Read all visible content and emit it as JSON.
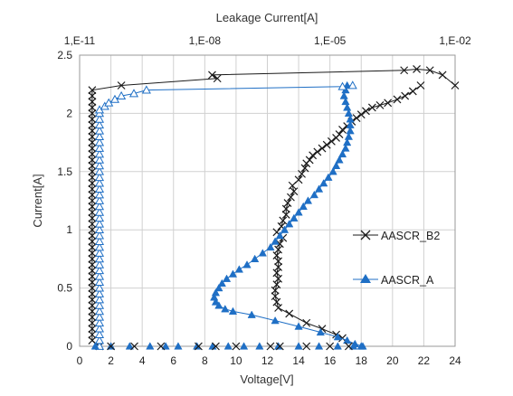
{
  "chart_data": {
    "type": "scatter",
    "title": "",
    "xlabel": "Voltage[V]",
    "x2label": "Leakage Current[A]",
    "ylabel": "Current[A]",
    "xlim": [
      0,
      24
    ],
    "ylim": [
      0,
      2.5
    ],
    "x_ticks": [
      "0",
      "2",
      "4",
      "6",
      "8",
      "10",
      "12",
      "14",
      "16",
      "18",
      "20",
      "22",
      "24"
    ],
    "y_ticks": [
      "0",
      "0.5",
      "1",
      "1.5",
      "2",
      "2.5"
    ],
    "x2_ticks": [
      "1,E-11",
      "1,E-08",
      "1,E-05",
      "1,E-02"
    ],
    "x2_scale": "log",
    "x2lim": [
      1e-11,
      0.01
    ],
    "grid": true,
    "legend_position": "right",
    "series": [
      {
        "name": "AASCR_B2",
        "color": "#1a1a1a",
        "marker": "x",
        "tlp": {
          "voltage": [
            16.8,
            16.4,
            15.5,
            14.5,
            13.4,
            12.7,
            12.6,
            12.5,
            12.5,
            12.6,
            12.7,
            12.6,
            12.7,
            12.7,
            12.6,
            12.7,
            12.8,
            13.0,
            12.6,
            12.9,
            13.0,
            13.2,
            13.2,
            13.3,
            13.5,
            13.7,
            13.6,
            14.0,
            14.2,
            14.4,
            14.5,
            14.7,
            14.9,
            15.2,
            15.5,
            15.8,
            16.1,
            16.4,
            16.6,
            16.8,
            17.1,
            17.4,
            17.7,
            18.0,
            18.3,
            18.7,
            19.2,
            19.7,
            20.3,
            20.8,
            21.3,
            21.8
          ],
          "current": [
            0.07,
            0.1,
            0.15,
            0.2,
            0.28,
            0.33,
            0.38,
            0.43,
            0.48,
            0.53,
            0.58,
            0.63,
            0.68,
            0.73,
            0.78,
            0.83,
            0.88,
            0.93,
            0.98,
            1.03,
            1.08,
            1.13,
            1.18,
            1.23,
            1.28,
            1.33,
            1.38,
            1.43,
            1.48,
            1.53,
            1.57,
            1.6,
            1.64,
            1.67,
            1.7,
            1.73,
            1.76,
            1.79,
            1.82,
            1.86,
            1.89,
            1.93,
            1.96,
            1.99,
            2.02,
            2.05,
            2.07,
            2.09,
            2.12,
            2.15,
            2.19,
            2.24
          ]
        },
        "leakage": {
          "current": [
            0,
            0.05,
            0.1,
            0.15,
            0.2,
            0.25,
            0.3,
            0.35,
            0.4,
            0.45,
            0.5,
            0.55,
            0.6,
            0.65,
            0.7,
            0.75,
            0.8,
            0.85,
            0.9,
            0.95,
            1.0,
            1.05,
            1.1,
            1.15,
            1.2,
            1.25,
            1.3,
            1.35,
            1.4,
            1.45,
            1.5,
            1.55,
            1.6,
            1.65,
            1.7,
            1.75,
            1.8,
            1.85,
            1.9,
            1.95,
            2.0,
            2.05,
            2.1,
            2.15,
            2.2,
            2.24,
            2.3,
            2.33,
            2.37,
            2.38,
            2.37,
            2.33,
            2.24
          ],
          "leakage_a": [
            3e-11,
            2e-11,
            2e-11,
            2e-11,
            2e-11,
            2e-11,
            2e-11,
            2e-11,
            2e-11,
            2e-11,
            2e-11,
            2e-11,
            2e-11,
            2e-11,
            2e-11,
            2e-11,
            2e-11,
            2e-11,
            2e-11,
            2e-11,
            2e-11,
            2e-11,
            2e-11,
            2e-11,
            2e-11,
            2e-11,
            2e-11,
            2e-11,
            2e-11,
            2e-11,
            2e-11,
            2e-11,
            2e-11,
            2e-11,
            2e-11,
            2e-11,
            2e-11,
            2e-11,
            2e-11,
            2e-11,
            2e-11,
            2e-11,
            2e-11,
            2e-11,
            2e-11,
            1e-10,
            2e-08,
            1.5e-08,
            0.0006,
            0.0012,
            0.0025,
            0.005,
            0.01
          ]
        }
      },
      {
        "name": "AASCR_A",
        "color": "#1f6fc5",
        "marker": "triangle",
        "tlp": {
          "voltage": [
            18.1,
            17.6,
            17.1,
            16.5,
            15.4,
            14.0,
            12.5,
            11.0,
            9.8,
            9.3,
            8.9,
            8.7,
            8.6,
            8.7,
            8.9,
            9.1,
            9.4,
            9.8,
            10.2,
            10.7,
            11.2,
            11.7,
            12.2,
            12.5,
            12.8,
            13.1,
            13.4,
            13.7,
            14.0,
            14.3,
            14.6,
            15.0,
            15.3,
            15.6,
            15.9,
            16.2,
            16.4,
            16.6,
            16.8,
            17.0,
            17.1,
            17.2,
            17.3,
            17.3,
            17.3,
            17.2,
            17.1,
            17.0,
            16.9,
            17.0,
            17.1
          ],
          "current": [
            0.0,
            0.02,
            0.05,
            0.08,
            0.12,
            0.17,
            0.22,
            0.27,
            0.3,
            0.32,
            0.35,
            0.38,
            0.42,
            0.46,
            0.5,
            0.54,
            0.58,
            0.62,
            0.66,
            0.7,
            0.75,
            0.8,
            0.85,
            0.9,
            0.95,
            1.0,
            1.05,
            1.1,
            1.15,
            1.2,
            1.25,
            1.3,
            1.35,
            1.4,
            1.45,
            1.5,
            1.55,
            1.6,
            1.65,
            1.7,
            1.75,
            1.8,
            1.85,
            1.9,
            1.95,
            2.0,
            2.05,
            2.1,
            2.15,
            2.2,
            2.24
          ]
        },
        "leakage": {
          "current": [
            0,
            0.05,
            0.1,
            0.15,
            0.2,
            0.25,
            0.3,
            0.35,
            0.4,
            0.45,
            0.5,
            0.55,
            0.6,
            0.65,
            0.7,
            0.75,
            0.8,
            0.85,
            0.9,
            0.95,
            1.0,
            1.05,
            1.1,
            1.15,
            1.2,
            1.25,
            1.3,
            1.35,
            1.4,
            1.45,
            1.5,
            1.55,
            1.6,
            1.65,
            1.7,
            1.75,
            1.8,
            1.85,
            1.9,
            1.95,
            2.0,
            2.03,
            2.06,
            2.09,
            2.12,
            2.15,
            2.17,
            2.2,
            2.23,
            2.24
          ],
          "leakage_a": [
            3e-11,
            3e-11,
            3e-11,
            3e-11,
            3e-11,
            3e-11,
            3e-11,
            3e-11,
            3e-11,
            3e-11,
            3e-11,
            3e-11,
            3e-11,
            3e-11,
            3e-11,
            3e-11,
            3e-11,
            3e-11,
            3e-11,
            3e-11,
            3e-11,
            3e-11,
            3e-11,
            3e-11,
            3e-11,
            3e-11,
            3e-11,
            3e-11,
            3e-11,
            3e-11,
            3e-11,
            3e-11,
            3e-11,
            3e-11,
            3e-11,
            3e-11,
            3e-11,
            3e-11,
            3e-11,
            3e-11,
            3e-11,
            3e-11,
            4e-11,
            5e-11,
            7e-11,
            1e-10,
            2e-10,
            4e-10,
            2e-05,
            3.5e-05
          ]
        }
      }
    ]
  },
  "colors": {
    "grid": "#d0d0d0",
    "frame": "#999999",
    "b2": "#1a1a1a",
    "a": "#1f6fc5"
  }
}
